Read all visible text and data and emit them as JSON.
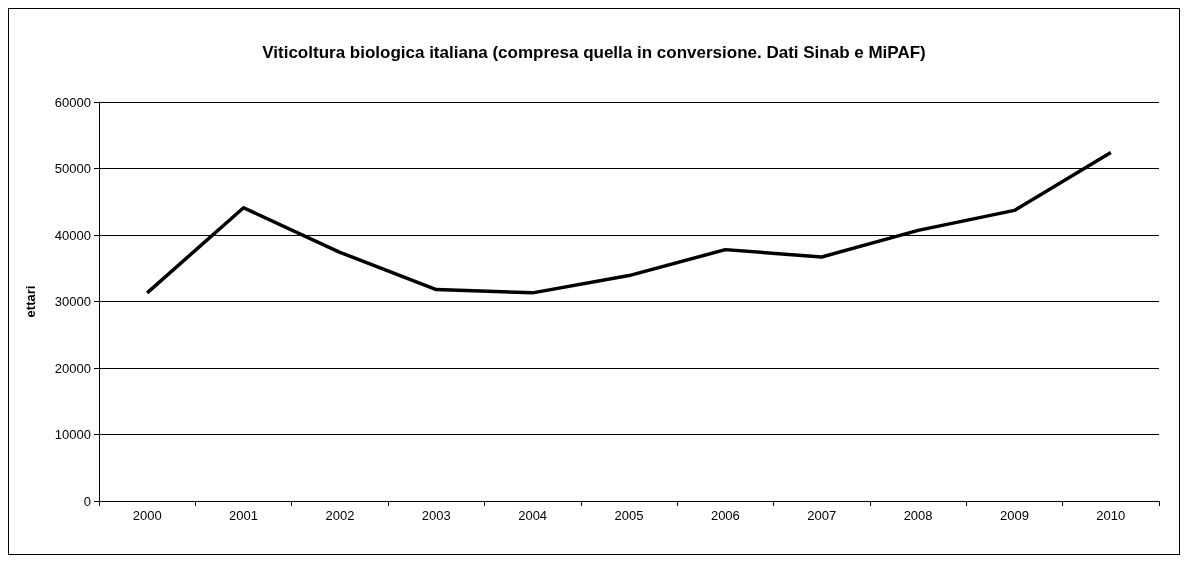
{
  "chart_data": {
    "type": "line",
    "title": "Viticoltura biologica italiana (compresa quella in conversione. Dati Sinab e MiPAF)",
    "ylabel": "ettari",
    "categories": [
      "2000",
      "2001",
      "2002",
      "2003",
      "2004",
      "2005",
      "2006",
      "2007",
      "2008",
      "2009",
      "2010"
    ],
    "series": [
      {
        "color": "#000000",
        "values": [
          31300,
          44100,
          37400,
          31800,
          31300,
          33900,
          37800,
          36700,
          40700,
          43700,
          52400
        ]
      }
    ],
    "ylim": [
      0,
      60000
    ],
    "yticks": [
      0,
      10000,
      20000,
      30000,
      40000,
      50000,
      60000
    ],
    "grid": "y",
    "marker": "none",
    "line_style": "solid"
  }
}
